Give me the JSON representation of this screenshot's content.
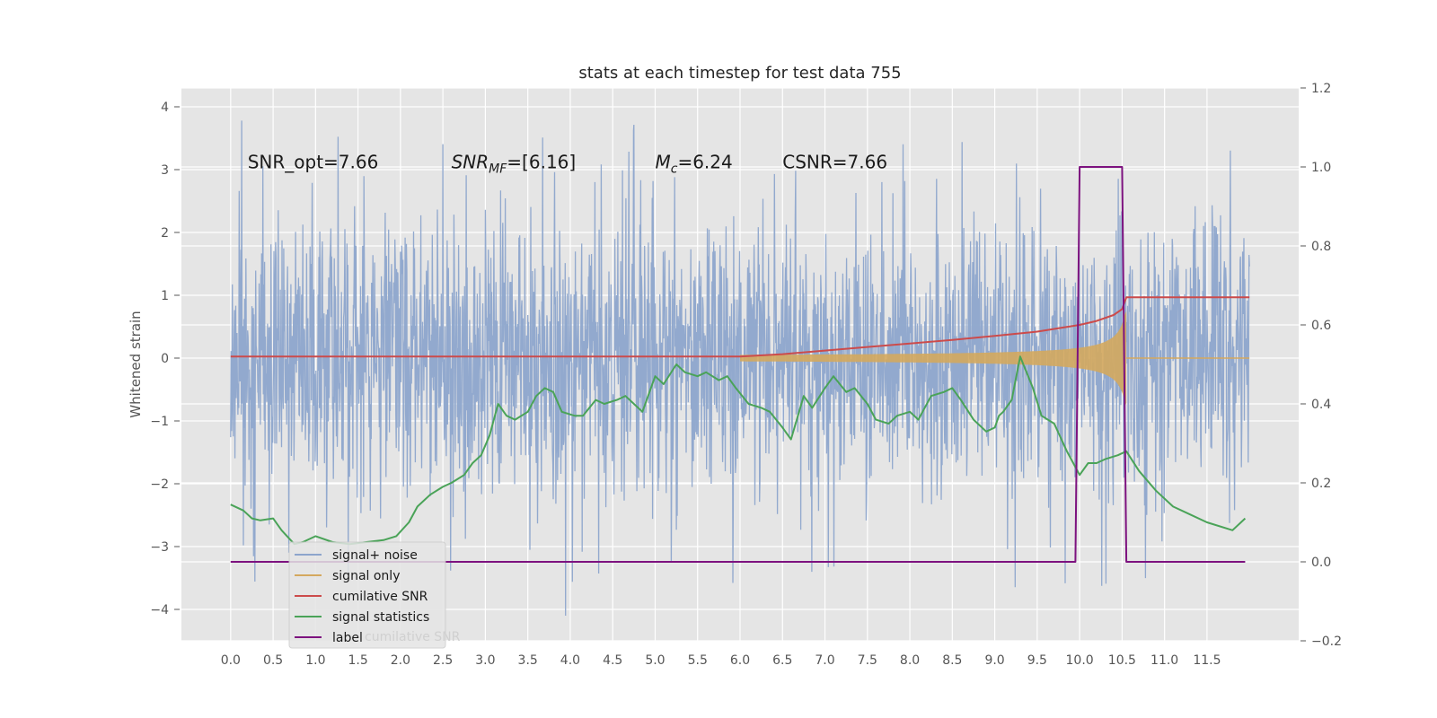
{
  "chart_data": {
    "type": "line",
    "title": "stats at each timestep for test data 755",
    "ylabel": "Whitened strain",
    "xlabel": "",
    "xlim": [
      -0.58,
      12.58
    ],
    "ylim": [
      -4.5,
      4.3
    ],
    "y2lim": [
      -0.2,
      1.2
    ],
    "x_ticks": [
      "0.0",
      "0.5",
      "1.0",
      "1.5",
      "2.0",
      "2.5",
      "3.0",
      "3.5",
      "4.0",
      "4.5",
      "5.0",
      "5.5",
      "6.0",
      "6.5",
      "7.0",
      "7.5",
      "8.0",
      "8.5",
      "9.0",
      "9.5",
      "10.0",
      "10.5",
      "11.0",
      "11.5"
    ],
    "y_ticks": [
      -4,
      -3,
      -2,
      -1,
      0,
      1,
      2,
      3,
      4
    ],
    "y_tick_labels": [
      "−4",
      "−3",
      "−2",
      "−1",
      "0",
      "1",
      "2",
      "3",
      "4"
    ],
    "y2_ticks": [
      -0.2,
      0.0,
      0.2,
      0.4,
      0.6,
      0.8,
      1.0,
      1.2
    ],
    "y2_tick_labels": [
      "−0.2",
      "0.0",
      "0.2",
      "0.4",
      "0.6",
      "0.8",
      "1.0",
      "1.2"
    ],
    "grid": true,
    "legend_position": "lower-left",
    "annotations": [
      {
        "x": 0.2,
        "y": 3.05,
        "text": "SNR_opt=7.66"
      },
      {
        "x": 2.6,
        "y": 3.05,
        "text": "SNR_MF=[6.16]"
      },
      {
        "x": 5.0,
        "y": 3.05,
        "text": "M_c=6.24"
      },
      {
        "x": 6.5,
        "y": 3.05,
        "text": "CSNR=7.66"
      }
    ],
    "series": [
      {
        "name": "signal+ noise",
        "color": "#8da5cc",
        "axis": "left",
        "kind": "noise",
        "x_start": 0.0,
        "x_end": 12.0,
        "typical_range": [
          -2.0,
          2.0
        ],
        "max": 3.9,
        "min": -4.1
      },
      {
        "name": "signal only",
        "color": "#d4a85e",
        "axis": "left",
        "kind": "chirp",
        "x_start": 6.0,
        "x_end": 10.55,
        "peak_amplitude": 0.75
      },
      {
        "name": "cumilative SNR",
        "color": "#cc4b4b",
        "axis": "right",
        "x": [
          0.0,
          6.0,
          6.5,
          7.0,
          7.5,
          8.0,
          8.5,
          9.0,
          9.5,
          10.0,
          10.2,
          10.4,
          10.5,
          10.55,
          11.0,
          11.5,
          12.0
        ],
        "values": [
          0.52,
          0.52,
          0.526,
          0.535,
          0.544,
          0.553,
          0.562,
          0.572,
          0.583,
          0.6,
          0.61,
          0.625,
          0.64,
          0.67,
          0.67,
          0.67,
          0.67
        ]
      },
      {
        "name": "signal statistics",
        "color": "#4aa358",
        "axis": "right",
        "x": [
          0.0,
          0.15,
          0.25,
          0.35,
          0.5,
          0.6,
          0.75,
          0.85,
          1.0,
          1.2,
          1.4,
          1.6,
          1.8,
          1.95,
          2.1,
          2.2,
          2.35,
          2.5,
          2.6,
          2.75,
          2.85,
          2.95,
          3.05,
          3.15,
          3.25,
          3.35,
          3.5,
          3.6,
          3.7,
          3.8,
          3.9,
          4.05,
          4.15,
          4.3,
          4.4,
          4.55,
          4.65,
          4.75,
          4.85,
          5.0,
          5.1,
          5.25,
          5.35,
          5.5,
          5.6,
          5.75,
          5.85,
          5.95,
          6.1,
          6.25,
          6.35,
          6.5,
          6.6,
          6.75,
          6.85,
          7.0,
          7.1,
          7.25,
          7.35,
          7.5,
          7.6,
          7.75,
          7.85,
          8.0,
          8.1,
          8.25,
          8.4,
          8.5,
          8.6,
          8.75,
          8.9,
          9.0,
          9.05,
          9.1,
          9.2,
          9.3,
          9.45,
          9.55,
          9.7,
          9.85,
          10.0,
          10.1,
          10.2,
          10.3,
          10.45,
          10.55,
          10.7,
          10.9,
          11.1,
          11.3,
          11.5,
          11.8,
          11.95
        ],
        "values": [
          0.145,
          0.13,
          0.11,
          0.105,
          0.11,
          0.08,
          0.045,
          0.05,
          0.065,
          0.05,
          0.045,
          0.05,
          0.055,
          0.065,
          0.1,
          0.14,
          0.17,
          0.19,
          0.2,
          0.22,
          0.25,
          0.27,
          0.32,
          0.4,
          0.37,
          0.36,
          0.38,
          0.42,
          0.44,
          0.43,
          0.38,
          0.37,
          0.37,
          0.41,
          0.4,
          0.41,
          0.42,
          0.4,
          0.38,
          0.47,
          0.45,
          0.5,
          0.48,
          0.47,
          0.48,
          0.46,
          0.47,
          0.44,
          0.4,
          0.39,
          0.38,
          0.34,
          0.31,
          0.42,
          0.39,
          0.44,
          0.47,
          0.43,
          0.44,
          0.4,
          0.36,
          0.35,
          0.37,
          0.38,
          0.36,
          0.42,
          0.43,
          0.44,
          0.41,
          0.36,
          0.33,
          0.34,
          0.37,
          0.38,
          0.41,
          0.52,
          0.44,
          0.37,
          0.35,
          0.28,
          0.22,
          0.25,
          0.25,
          0.26,
          0.27,
          0.28,
          0.23,
          0.18,
          0.14,
          0.12,
          0.1,
          0.08,
          0.11
        ]
      },
      {
        "name": "label",
        "color": "#7d127f",
        "axis": "right",
        "x": [
          0.0,
          9.95,
          10.0,
          10.5,
          10.55,
          11.95
        ],
        "values": [
          0.0,
          0.0,
          1.0,
          1.0,
          0.0,
          0.0
        ]
      }
    ],
    "legend_overlap_text": "cumilative SNR"
  }
}
